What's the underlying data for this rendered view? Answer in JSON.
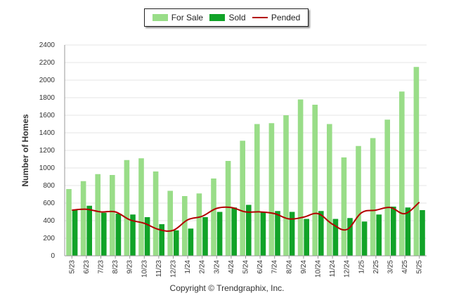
{
  "chart_data": {
    "type": "bar",
    "ylabel": "Number of Homes",
    "xlabel": "",
    "ylim": [
      0,
      2400
    ],
    "yticks": [
      0,
      200,
      400,
      600,
      800,
      1000,
      1200,
      1400,
      1600,
      1800,
      2000,
      2200,
      2400
    ],
    "grid": true,
    "legend_position": "top-center",
    "categories": [
      "5/23",
      "6/23",
      "7/23",
      "8/23",
      "9/23",
      "10/23",
      "11/23",
      "12/23",
      "1/24",
      "2/24",
      "3/24",
      "4/24",
      "5/24",
      "6/24",
      "7/24",
      "8/24",
      "9/24",
      "10/24",
      "11/24",
      "12/24",
      "1/25",
      "2/25",
      "3/25",
      "4/25",
      "5/25"
    ],
    "series": [
      {
        "name": "For Sale",
        "kind": "bar",
        "color": "#99dd88",
        "values": [
          760,
          850,
          930,
          920,
          1090,
          1110,
          960,
          740,
          680,
          710,
          880,
          1080,
          1310,
          1500,
          1510,
          1600,
          1780,
          1720,
          1500,
          1120,
          1250,
          1340,
          1550,
          1870,
          2150
        ]
      },
      {
        "name": "Sold",
        "kind": "bar",
        "color": "#11a328",
        "values": [
          520,
          570,
          490,
          480,
          470,
          440,
          360,
          290,
          310,
          440,
          500,
          550,
          580,
          500,
          510,
          500,
          420,
          510,
          420,
          430,
          390,
          470,
          560,
          550,
          520
        ]
      },
      {
        "name": "Pended",
        "kind": "line",
        "color": "#b30000",
        "values": [
          520,
          530,
          500,
          500,
          410,
          370,
          300,
          290,
          410,
          450,
          540,
          550,
          500,
          500,
          480,
          420,
          440,
          480,
          360,
          300,
          490,
          520,
          550,
          480,
          610
        ]
      }
    ]
  },
  "legend": {
    "for_sale": "For Sale",
    "sold": "Sold",
    "pended": "Pended"
  },
  "footer": {
    "copyright": "Copyright © Trendgraphix, Inc."
  }
}
